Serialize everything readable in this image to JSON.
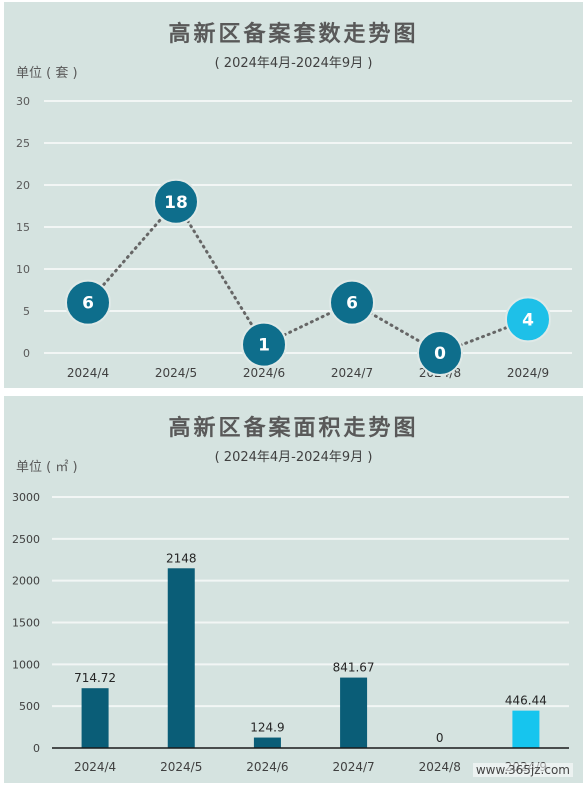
{
  "charts": [
    {
      "title": "高新区备案套数走势图",
      "subtitle": "( 2024年4月-2024年9月 )",
      "unit_label": "单位 ( 套 )",
      "chart_data": {
        "type": "line",
        "categories": [
          "2024/4",
          "2024/5",
          "2024/6",
          "2024/7",
          "2024/8",
          "2024/9"
        ],
        "values": [
          6,
          18,
          1,
          6,
          0,
          4
        ],
        "data_labels": [
          "6",
          "18",
          "1",
          "6",
          "0",
          "4"
        ],
        "yticks": [
          "0",
          "5",
          "10",
          "15",
          "20",
          "25",
          "30"
        ],
        "ylim": [
          0,
          30
        ],
        "grid": true,
        "line_style": "dotted",
        "colors": {
          "marker": "#0e6e8c",
          "marker_highlight": "#1ec0e8",
          "line": "#666666",
          "grid": "#f2f6f5"
        }
      }
    },
    {
      "title": "高新区备案面积走势图",
      "subtitle": "( 2024年4月-2024年9月 )",
      "unit_label": "单位 ( ㎡ )",
      "chart_data": {
        "type": "bar",
        "categories": [
          "2024/4",
          "2024/5",
          "2024/6",
          "2024/7",
          "2024/8",
          "2024/9"
        ],
        "values": [
          714.72,
          2148,
          124.9,
          841.67,
          0,
          446.44
        ],
        "data_labels": [
          "714.72",
          "2148",
          "124.9",
          "841.67",
          "0",
          "446.44"
        ],
        "yticks": [
          "0",
          "500",
          "1000",
          "1500",
          "2000",
          "2500",
          "3000"
        ],
        "ylim": [
          0,
          3000
        ],
        "grid": true,
        "colors": {
          "bar": "#0a5d77",
          "bar_highlight": "#16c5ee",
          "grid": "#f2f6f5"
        }
      }
    }
  ],
  "watermark": "www.365jz.com"
}
